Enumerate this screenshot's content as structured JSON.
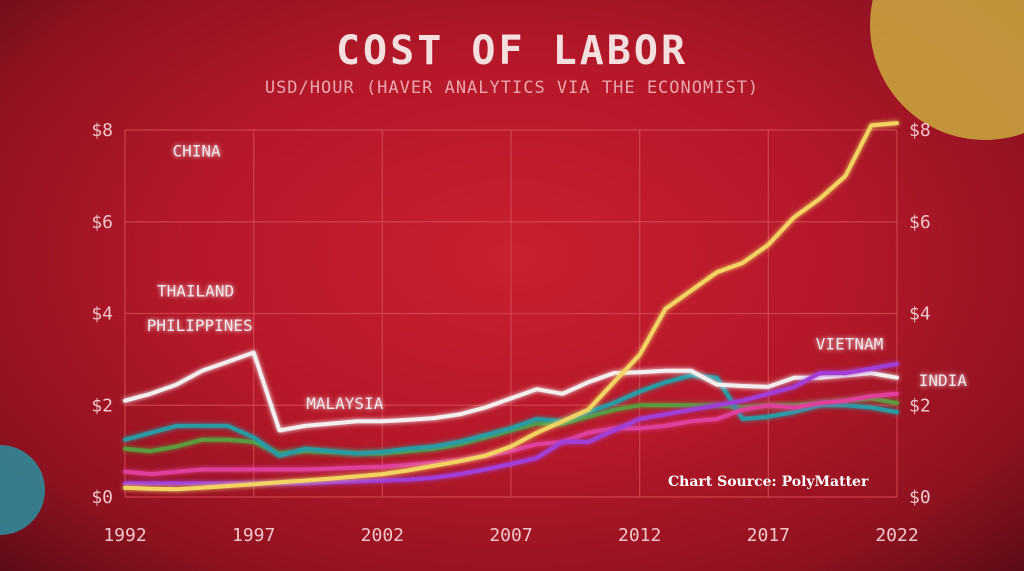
{
  "title": "COST OF LABOR",
  "subtitle": "USD/HOUR (HAVER ANALYTICS VIA THE ECONOMIST)",
  "source": "Chart Source:  PolyMatter",
  "colors": {
    "grid": "#d84a56",
    "axis_text": "#f0c6ca",
    "China": "#f3d463",
    "Vietnam": "#a23ed6",
    "India": "#e0409c",
    "Malaysia": "#f4eeee",
    "Thailand": "#2a9aa3",
    "Philippines": "#5c9a3c"
  },
  "chart_data": {
    "type": "line",
    "title": "COST OF LABOR",
    "subtitle": "USD/HOUR (HAVER ANALYTICS VIA THE ECONOMIST)",
    "xlim": [
      1992,
      2022
    ],
    "ylim": [
      0,
      8
    ],
    "x_ticks": [
      1992,
      1997,
      2002,
      2007,
      2012,
      2017,
      2022
    ],
    "x_tick_labels": [
      "1992",
      "1997",
      "2002",
      "2007",
      "2012",
      "2017",
      "2022"
    ],
    "y_ticks": [
      0,
      2,
      4,
      6,
      8
    ],
    "y_tick_labels": [
      "$0",
      "$2",
      "$4",
      "$6",
      "$8"
    ],
    "grid": true,
    "x": [
      1992,
      1993,
      1994,
      1995,
      1996,
      1997,
      1998,
      1999,
      2000,
      2001,
      2002,
      2003,
      2004,
      2005,
      2006,
      2007,
      2008,
      2009,
      2010,
      2011,
      2012,
      2013,
      2014,
      2015,
      2016,
      2017,
      2018,
      2019,
      2020,
      2021,
      2022
    ],
    "series": [
      {
        "name": "CHINA",
        "key": "China",
        "label_x": 1994,
        "values": [
          0.2,
          0.18,
          0.17,
          0.2,
          0.24,
          0.28,
          0.32,
          0.36,
          0.4,
          0.45,
          0.5,
          0.58,
          0.68,
          0.78,
          0.9,
          1.1,
          1.4,
          1.65,
          1.9,
          2.5,
          3.1,
          4.1,
          4.5,
          4.9,
          5.1,
          5.5,
          6.1,
          6.5,
          7.0,
          8.1,
          8.15
        ]
      },
      {
        "name": "VIETNAM",
        "key": "Vietnam",
        "label_x": 2019,
        "values": [
          0.3,
          0.3,
          0.3,
          0.3,
          0.3,
          0.3,
          0.3,
          0.3,
          0.32,
          0.34,
          0.36,
          0.38,
          0.42,
          0.5,
          0.6,
          0.72,
          0.85,
          1.2,
          1.2,
          1.45,
          1.7,
          1.8,
          1.9,
          2.0,
          2.1,
          2.25,
          2.4,
          2.7,
          2.7,
          2.8,
          2.9
        ]
      },
      {
        "name": "INDIA",
        "key": "India",
        "label_x": 2023,
        "values": [
          0.55,
          0.5,
          0.55,
          0.6,
          0.6,
          0.6,
          0.6,
          0.6,
          0.62,
          0.64,
          0.66,
          0.7,
          0.75,
          0.8,
          0.9,
          1.0,
          1.15,
          1.2,
          1.4,
          1.5,
          1.5,
          1.55,
          1.65,
          1.7,
          1.9,
          2.0,
          1.95,
          2.05,
          2.1,
          2.2,
          2.25
        ]
      },
      {
        "name": "MALAYSIA",
        "key": "Malaysia",
        "label_x": 1999.2,
        "values": [
          2.1,
          2.25,
          2.45,
          2.75,
          2.95,
          3.15,
          1.45,
          1.55,
          1.6,
          1.65,
          1.65,
          1.68,
          1.72,
          1.8,
          1.95,
          2.15,
          2.35,
          2.25,
          2.5,
          2.7,
          2.72,
          2.75,
          2.75,
          2.45,
          2.42,
          2.4,
          2.6,
          2.6,
          2.65,
          2.7,
          2.6
        ]
      },
      {
        "name": "THAILAND",
        "key": "Thailand",
        "label_x": 1993.4,
        "values": [
          1.25,
          1.4,
          1.55,
          1.55,
          1.55,
          1.3,
          0.9,
          1.05,
          1.0,
          0.95,
          0.98,
          1.05,
          1.1,
          1.2,
          1.35,
          1.5,
          1.7,
          1.65,
          1.85,
          2.05,
          2.3,
          2.5,
          2.65,
          2.6,
          1.7,
          1.75,
          1.85,
          2.0,
          2.0,
          1.95,
          1.85
        ]
      },
      {
        "name": "PHILIPPINES",
        "key": "Philippines",
        "label_x": 1993,
        "values": [
          1.05,
          1.0,
          1.1,
          1.25,
          1.25,
          1.2,
          0.95,
          1.0,
          0.98,
          0.95,
          0.95,
          1.0,
          1.05,
          1.15,
          1.3,
          1.45,
          1.6,
          1.6,
          1.75,
          1.9,
          2.0,
          2.0,
          2.0,
          2.0,
          1.95,
          2.0,
          2.0,
          2.05,
          2.1,
          2.15,
          2.05
        ]
      }
    ]
  }
}
